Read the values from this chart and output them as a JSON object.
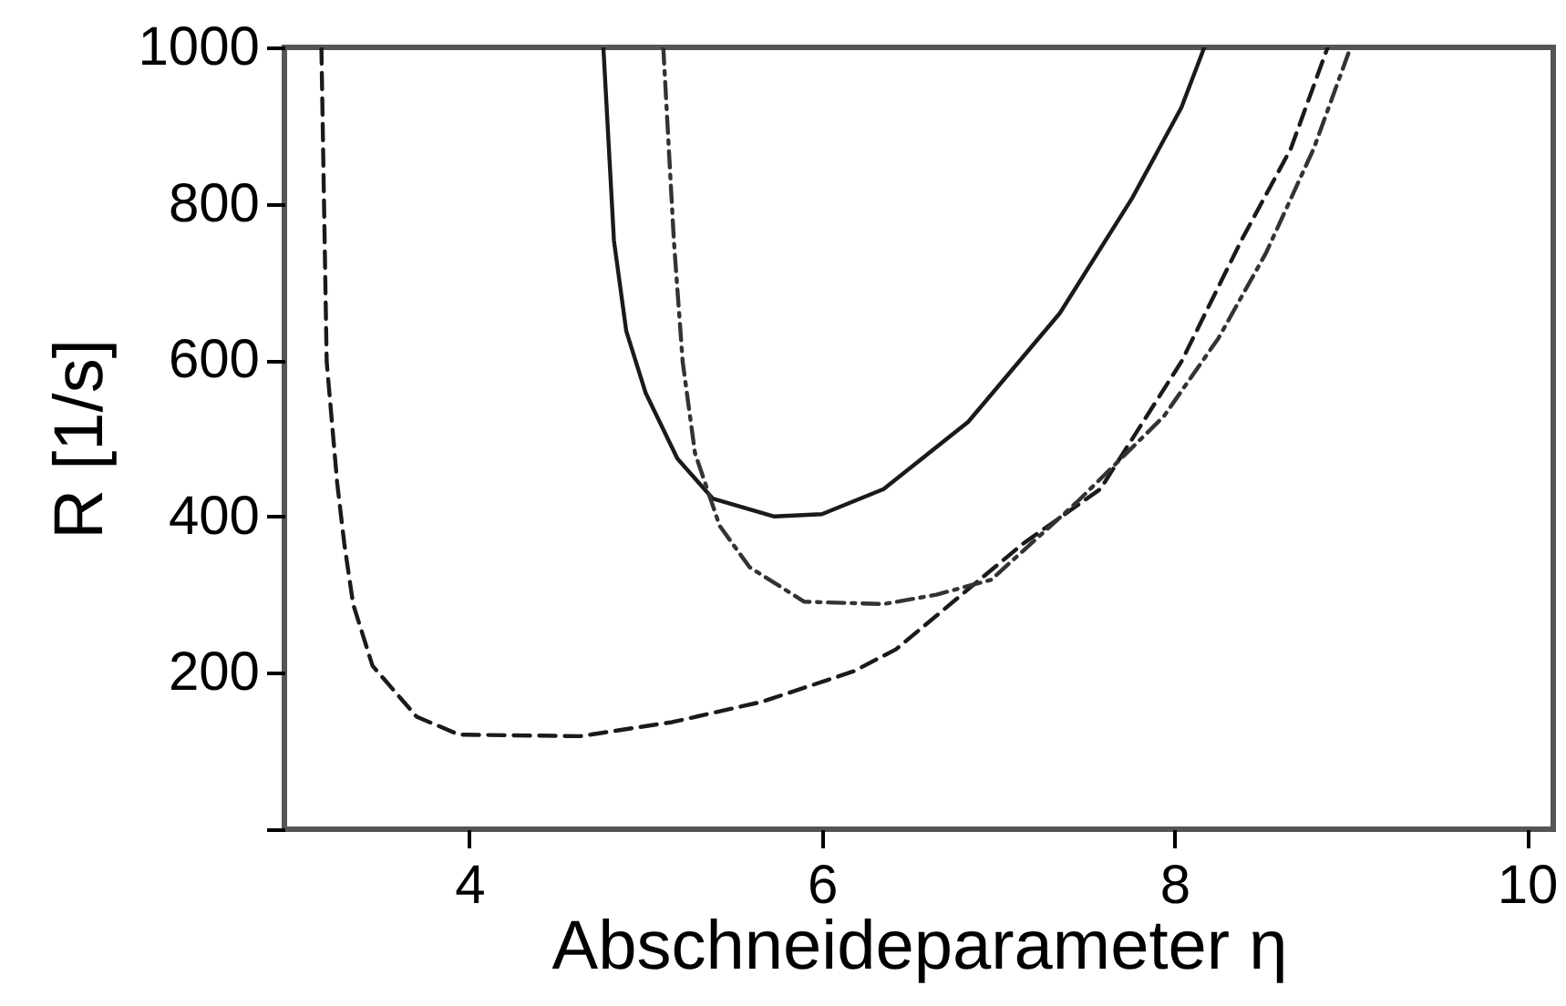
{
  "chart_data": {
    "type": "line",
    "xlabel": "Abschneideparameter η",
    "ylabel": "R [1/s]",
    "xlim": [
      2.95,
      10.15
    ],
    "ylim": [
      0,
      1000
    ],
    "xticks": [
      4,
      6,
      8,
      10
    ],
    "yticks": [
      {
        "value": 0,
        "label": null
      },
      200,
      400,
      600,
      800,
      1000
    ],
    "grid": false,
    "legend": false,
    "marker": "none",
    "series": [
      {
        "color": "#1a1a1a",
        "line_style": "solid",
        "x": [
          4.76,
          4.82,
          4.89,
          5.0,
          5.18,
          5.38,
          5.73,
          6.0,
          6.35,
          6.83,
          7.35,
          7.76,
          8.04,
          8.17
        ],
        "values": [
          1000,
          753,
          637,
          558,
          474,
          423,
          400,
          403,
          435,
          521,
          660,
          807,
          923,
          1000
        ]
      },
      {
        "color": "#1a1a1a",
        "line_style": "dashed",
        "x": [
          3.16,
          3.19,
          3.25,
          3.29,
          3.34,
          3.45,
          3.7,
          3.94,
          4.63,
          5.15,
          5.66,
          6.18,
          6.42,
          7.14,
          7.58,
          8.04,
          8.38,
          8.66,
          8.87
        ],
        "values": [
          1000,
          598,
          442,
          365,
          288,
          209,
          144,
          121,
          119,
          137,
          163,
          202,
          230,
          365,
          435,
          598,
          753,
          870,
          1000
        ]
      },
      {
        "color": "#333333",
        "line_style": "dotted",
        "x": [
          5.1,
          5.16,
          5.21,
          5.28,
          5.42,
          5.59,
          5.9,
          6.35,
          6.65,
          6.96,
          7.45,
          7.94,
          8.25,
          8.52,
          8.79,
          9.0
        ],
        "values": [
          1000,
          753,
          598,
          481,
          388,
          335,
          291,
          288,
          300,
          319,
          419,
          528,
          628,
          737,
          870,
          1000
        ]
      }
    ]
  }
}
